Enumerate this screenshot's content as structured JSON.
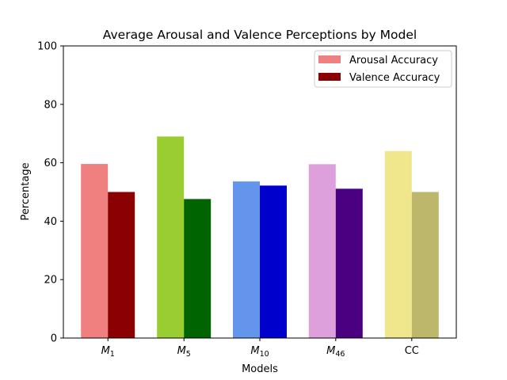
{
  "chart_data": {
    "type": "bar",
    "title": "Average Arousal and Valence Perceptions by Model",
    "xlabel": "Models",
    "ylabel": "Percentage",
    "ylim": [
      0,
      100
    ],
    "yticks": [
      0,
      20,
      40,
      60,
      80,
      100
    ],
    "grid": false,
    "legend_position": "top-right",
    "categories": [
      {
        "base": "M",
        "sub": "1"
      },
      {
        "base": "M",
        "sub": "5"
      },
      {
        "base": "M",
        "sub": "10"
      },
      {
        "base": "M",
        "sub": "46"
      },
      {
        "base": "CC",
        "sub": ""
      }
    ],
    "series": [
      {
        "name": "Arousal Accuracy",
        "legend_color": "#f08080",
        "values": [
          59.6,
          69.0,
          53.6,
          59.5,
          64.0
        ],
        "colors": [
          "#f08080",
          "#9acd32",
          "#6495ed",
          "#dda0dd",
          "#f0e68c"
        ]
      },
      {
        "name": "Valence Accuracy",
        "legend_color": "#8b0000",
        "values": [
          50.0,
          47.6,
          52.2,
          51.1,
          50.0
        ],
        "colors": [
          "#8b0000",
          "#006400",
          "#0000cd",
          "#4b0082",
          "#bdb76b"
        ]
      }
    ]
  }
}
